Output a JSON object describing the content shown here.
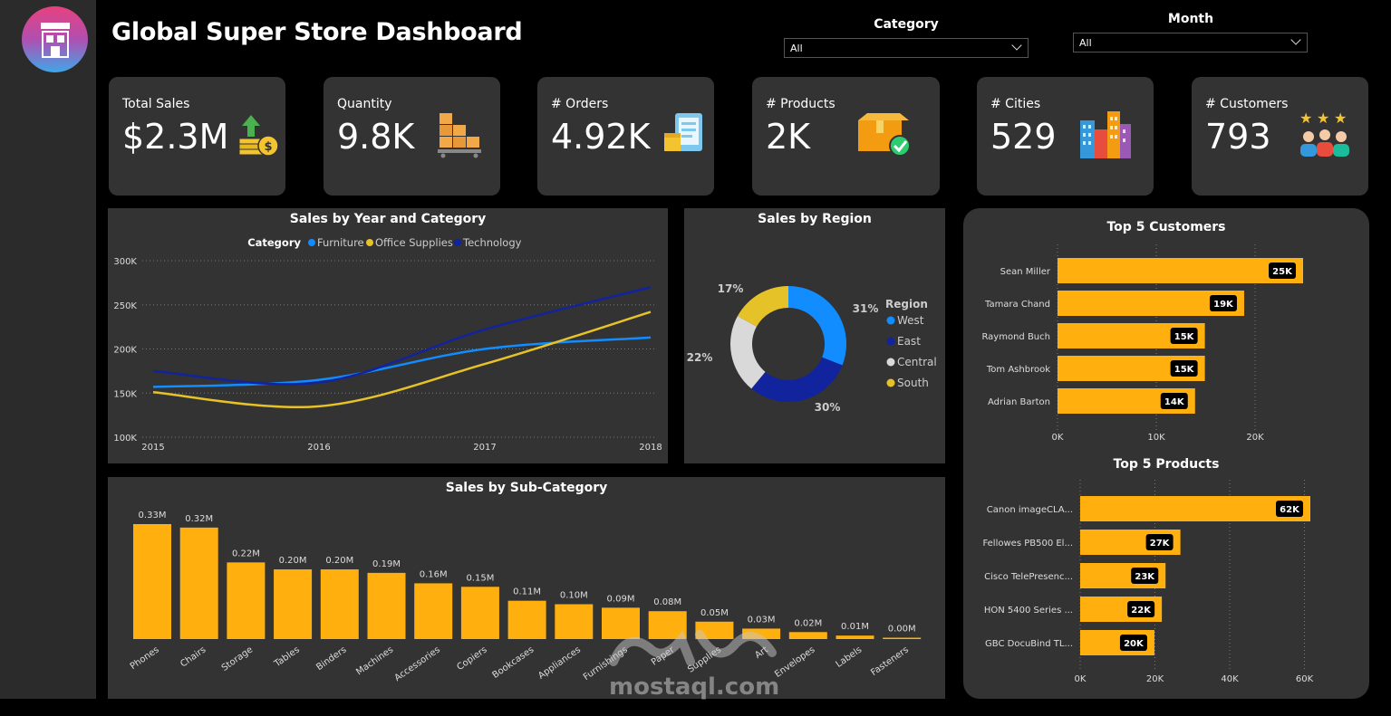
{
  "header": {
    "title": "Global Super Store Dashboard",
    "category_label": "Category",
    "category_value": "All",
    "month_label": "Month",
    "month_value": "All"
  },
  "kpis": [
    {
      "label": "Total Sales",
      "value": "$2.3M",
      "icon": "money-growth-icon"
    },
    {
      "label": "Quantity",
      "value": "9.8K",
      "icon": "boxes-icon"
    },
    {
      "label": "# Orders",
      "value": "4.92K",
      "icon": "order-tablet-icon"
    },
    {
      "label": "# Products",
      "value": "2K",
      "icon": "product-box-icon"
    },
    {
      "label": "# Cities",
      "value": "529",
      "icon": "city-buildings-icon"
    },
    {
      "label": "# Customers",
      "value": "793",
      "icon": "customers-icon"
    }
  ],
  "watermark": "mostaql.com",
  "colors": {
    "furniture": "#118dff",
    "office": "#e6c229",
    "technology": "#12239e",
    "bar": "#ffb00f",
    "central": "#d9d9d9"
  },
  "chart_data": [
    {
      "type": "line",
      "title": "Sales by Year and Category",
      "legend_title": "Category",
      "x": [
        "2015",
        "2016",
        "2017",
        "2018"
      ],
      "yticks": [
        "100K",
        "150K",
        "200K",
        "250K",
        "300K"
      ],
      "ylim": [
        100000,
        300000
      ],
      "series": [
        {
          "name": "Furniture",
          "values": [
            157000,
            165000,
            200000,
            213000
          ]
        },
        {
          "name": "Office Supplies",
          "values": [
            151000,
            135000,
            183000,
            242000
          ]
        },
        {
          "name": "Technology",
          "values": [
            175000,
            162000,
            222000,
            270000
          ]
        }
      ]
    },
    {
      "type": "pie",
      "title": "Sales by Region",
      "legend_title": "Region",
      "labels": [
        "West",
        "East",
        "Central",
        "South"
      ],
      "values": [
        31,
        30,
        22,
        17
      ],
      "data_labels": [
        "31%",
        "30%",
        "22%",
        "17%"
      ]
    },
    {
      "type": "bar",
      "title": "Top 5 Customers",
      "orientation": "horizontal",
      "categories": [
        "Sean Miller",
        "Tamara Chand",
        "Raymond Buch",
        "Tom Ashbrook",
        "Adrian Barton"
      ],
      "values": [
        25000,
        19000,
        15000,
        15000,
        14000
      ],
      "data_labels": [
        "25K",
        "19K",
        "15K",
        "15K",
        "14K"
      ],
      "xticks": [
        "0K",
        "10K",
        "20K"
      ],
      "xlim": [
        0,
        25000
      ]
    },
    {
      "type": "bar",
      "title": "Top 5 Products",
      "orientation": "horizontal",
      "categories": [
        "Canon imageCLA...",
        "Fellowes PB500 El...",
        "Cisco TelePresenc...",
        "HON 5400 Series ...",
        "GBC DocuBind TL..."
      ],
      "values": [
        62000,
        27000,
        23000,
        22000,
        20000
      ],
      "data_labels": [
        "62K",
        "27K",
        "23K",
        "22K",
        "20K"
      ],
      "xticks": [
        "0K",
        "20K",
        "40K",
        "60K"
      ],
      "xlim": [
        0,
        62000
      ]
    },
    {
      "type": "bar",
      "title": "Sales by Sub-Category",
      "categories": [
        "Phones",
        "Chairs",
        "Storage",
        "Tables",
        "Binders",
        "Machines",
        "Accessories",
        "Copiers",
        "Bookcases",
        "Appliances",
        "Furnishings",
        "Paper",
        "Supplies",
        "Art",
        "Envelopes",
        "Labels",
        "Fasteners"
      ],
      "values": [
        0.33,
        0.32,
        0.22,
        0.2,
        0.2,
        0.19,
        0.16,
        0.15,
        0.11,
        0.1,
        0.09,
        0.08,
        0.05,
        0.03,
        0.02,
        0.01,
        0.0
      ],
      "data_labels": [
        "0.33M",
        "0.32M",
        "0.22M",
        "0.20M",
        "0.20M",
        "0.19M",
        "0.16M",
        "0.15M",
        "0.11M",
        "0.10M",
        "0.09M",
        "0.08M",
        "0.05M",
        "0.03M",
        "0.02M",
        "0.01M",
        "0.00M"
      ],
      "ylim": [
        0,
        0.33
      ]
    }
  ]
}
